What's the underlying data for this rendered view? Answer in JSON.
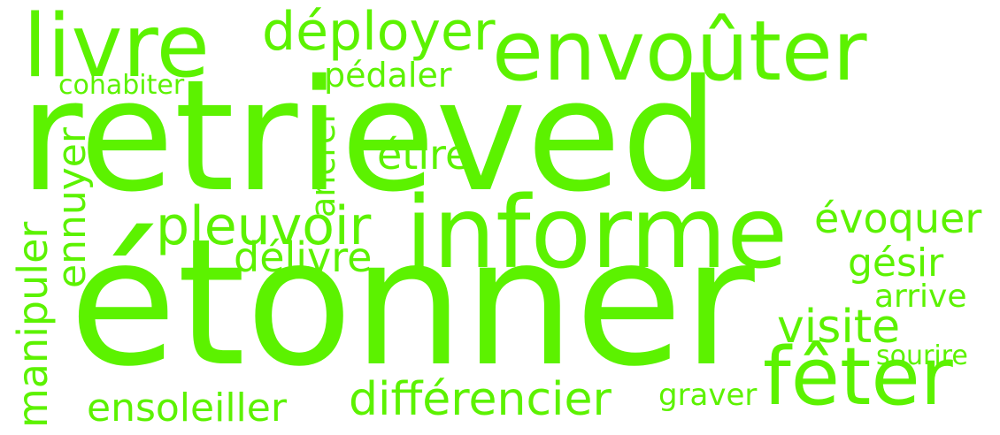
{
  "word_cloud": {
    "color": "#5cf200",
    "words": [
      {
        "text": "retrieved"
      },
      {
        "text": "étonner"
      },
      {
        "text": "informe"
      },
      {
        "text": "envoûter"
      },
      {
        "text": "livre"
      },
      {
        "text": "fêter"
      },
      {
        "text": "déployer"
      },
      {
        "text": "pleuvoir"
      },
      {
        "text": "différencier"
      },
      {
        "text": "ensoleiller"
      },
      {
        "text": "manipuler"
      },
      {
        "text": "ennuyer"
      },
      {
        "text": "délivre"
      },
      {
        "text": "visite"
      },
      {
        "text": "évoquer"
      },
      {
        "text": "gésir"
      },
      {
        "text": "étire"
      },
      {
        "text": "ancrer"
      },
      {
        "text": "pédaler"
      },
      {
        "text": "cohabiter"
      },
      {
        "text": "arrive"
      },
      {
        "text": "sourire"
      },
      {
        "text": "graver"
      }
    ]
  }
}
